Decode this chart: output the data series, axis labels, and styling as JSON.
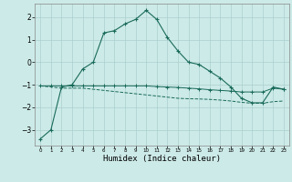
{
  "x": [
    0,
    1,
    2,
    3,
    4,
    5,
    6,
    7,
    8,
    9,
    10,
    11,
    12,
    13,
    14,
    15,
    16,
    17,
    18,
    19,
    20,
    21,
    22,
    23
  ],
  "line1": [
    -3.4,
    -3.0,
    -1.1,
    -1.0,
    -0.3,
    0.0,
    1.3,
    1.4,
    1.7,
    1.9,
    2.3,
    1.9,
    1.1,
    0.5,
    0.0,
    -0.1,
    -0.4,
    -0.7,
    -1.1,
    -1.6,
    -1.8,
    -1.8,
    -1.1,
    -1.2
  ],
  "line2": [
    -1.05,
    -1.1,
    -1.15,
    -1.15,
    -1.15,
    -1.2,
    -1.25,
    -1.3,
    -1.35,
    -1.4,
    -1.45,
    -1.5,
    -1.55,
    -1.6,
    -1.62,
    -1.63,
    -1.65,
    -1.68,
    -1.72,
    -1.78,
    -1.82,
    -1.82,
    -1.75,
    -1.72
  ],
  "line3": [
    -1.05,
    -1.05,
    -1.05,
    -1.05,
    -1.05,
    -1.05,
    -1.05,
    -1.05,
    -1.05,
    -1.05,
    -1.05,
    -1.08,
    -1.1,
    -1.12,
    -1.15,
    -1.18,
    -1.22,
    -1.25,
    -1.28,
    -1.32,
    -1.32,
    -1.32,
    -1.15,
    -1.2
  ],
  "bg_color": "#cceae8",
  "line_color": "#1a6b5a",
  "grid_color": "#aacfce",
  "xlabel": "Humidex (Indice chaleur)",
  "yticks": [
    -3,
    -2,
    -1,
    0,
    1,
    2
  ],
  "ylim": [
    -3.7,
    2.6
  ],
  "xlim": [
    -0.5,
    23.5
  ]
}
